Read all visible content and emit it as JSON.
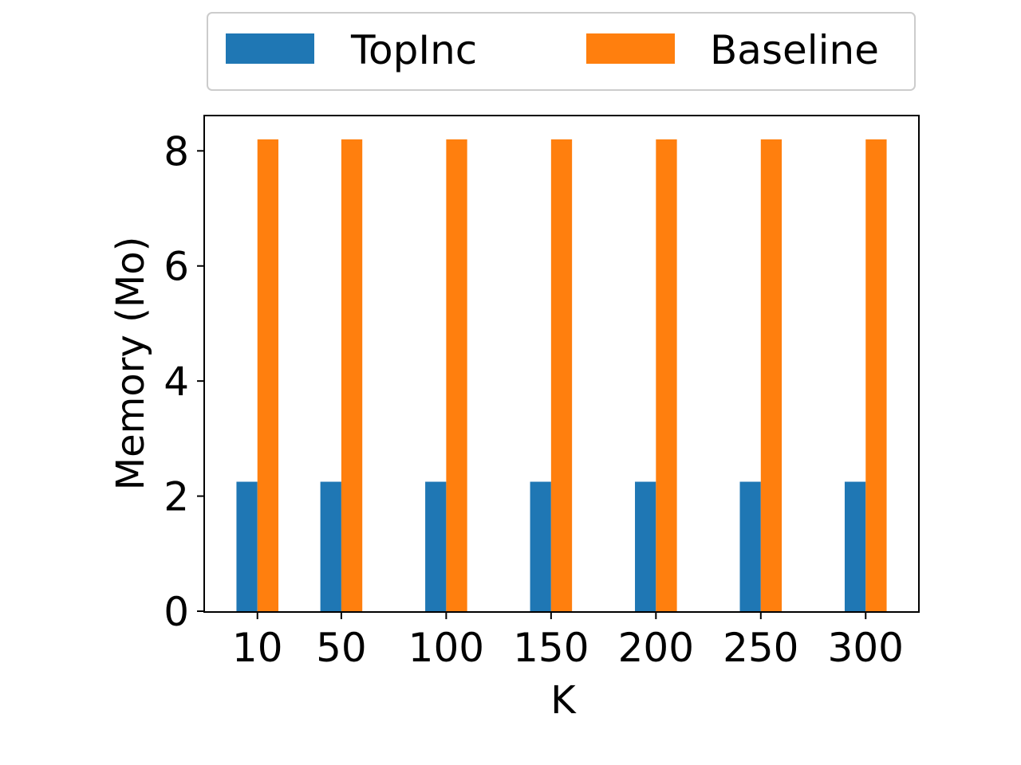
{
  "chart_data": {
    "type": "bar",
    "categories": [
      10,
      50,
      100,
      150,
      200,
      250,
      300
    ],
    "category_labels": [
      "10",
      "50",
      "100",
      "150",
      "200",
      "250",
      "300"
    ],
    "series": [
      {
        "name": "TopInc",
        "color": "#1f77b4",
        "values": [
          2.25,
          2.25,
          2.25,
          2.25,
          2.25,
          2.25,
          2.25
        ]
      },
      {
        "name": "Baseline",
        "color": "#ff7f0e",
        "values": [
          8.2,
          8.2,
          8.2,
          8.2,
          8.2,
          8.2,
          8.2
        ]
      }
    ],
    "title": "",
    "xlabel": "K",
    "ylabel": "Memory (Mo)",
    "xlim": [
      -15,
      325
    ],
    "ylim": [
      0,
      8.6
    ],
    "yticks": [
      0,
      2,
      4,
      6,
      8
    ],
    "ytick_labels": [
      "0",
      "2",
      "4",
      "6",
      "8"
    ],
    "bar_width_data": 10,
    "grid": false,
    "legend_position": "top-center-outside"
  }
}
